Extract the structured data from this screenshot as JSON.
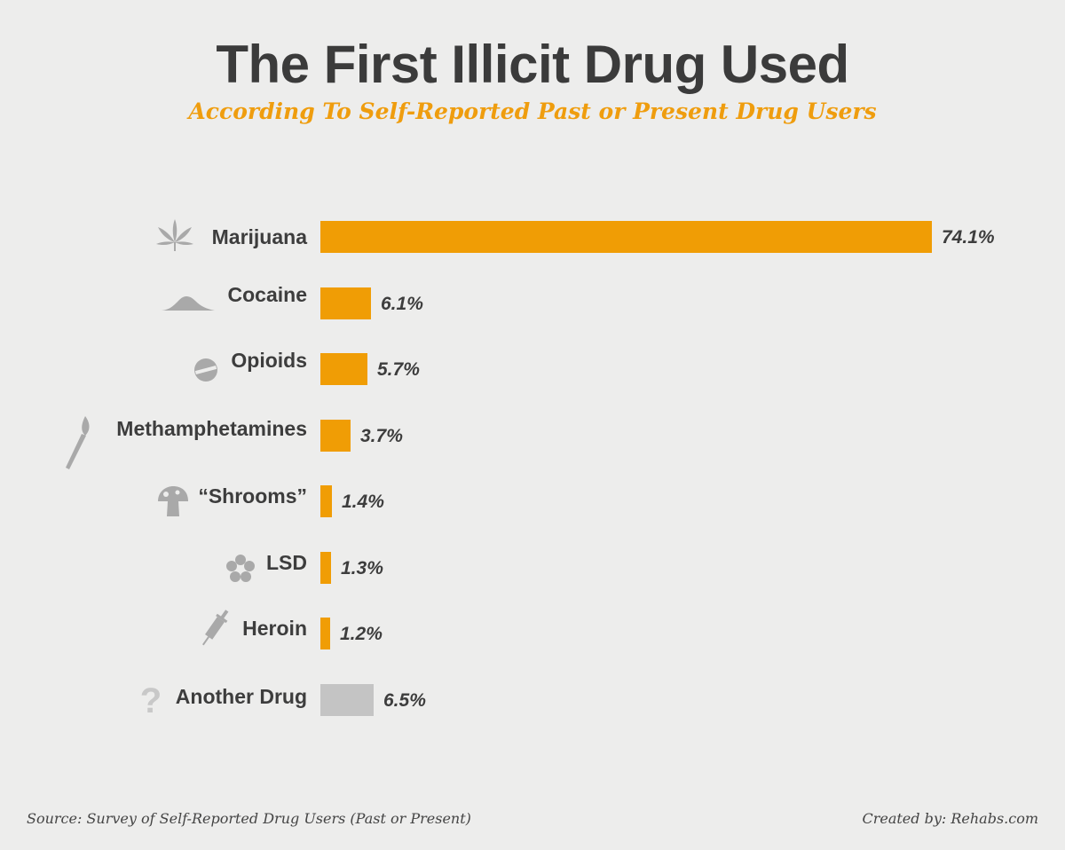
{
  "title": "The First Illicit Drug Used",
  "subtitle": "According To Self-Reported Past or Present Drug Users",
  "chart_data": {
    "type": "bar",
    "orientation": "horizontal",
    "categories": [
      "Marijuana",
      "Cocaine",
      "Opioids",
      "Methamphetamines",
      "“Shrooms”",
      "LSD",
      "Heroin",
      "Another Drug"
    ],
    "values": [
      74.1,
      6.1,
      5.7,
      3.7,
      1.4,
      1.3,
      1.2,
      6.5
    ],
    "value_labels": [
      "74.1%",
      "6.1%",
      "5.7%",
      "3.7%",
      "1.4%",
      "1.3%",
      "1.2%",
      "6.5%"
    ],
    "icons": [
      "cannabis-leaf-icon",
      "powder-pile-icon",
      "pill-icon",
      "match-icon",
      "mushroom-icon",
      "flower-icon",
      "syringe-icon",
      "question-mark-icon"
    ],
    "bar_colors": [
      "#f09d05",
      "#f09d05",
      "#f09d05",
      "#f09d05",
      "#f09d05",
      "#f09d05",
      "#f09d05",
      "#c4c4c4"
    ],
    "icon_color": "#a9a9a9",
    "xlim": [
      0,
      74.1
    ],
    "xlabel": "",
    "ylabel": "",
    "grid": false,
    "legend": "none"
  },
  "footer": {
    "source": "Source: Survey of Self-Reported Drug Users (Past or Present)",
    "credit": "Created by: Rehabs.com"
  }
}
